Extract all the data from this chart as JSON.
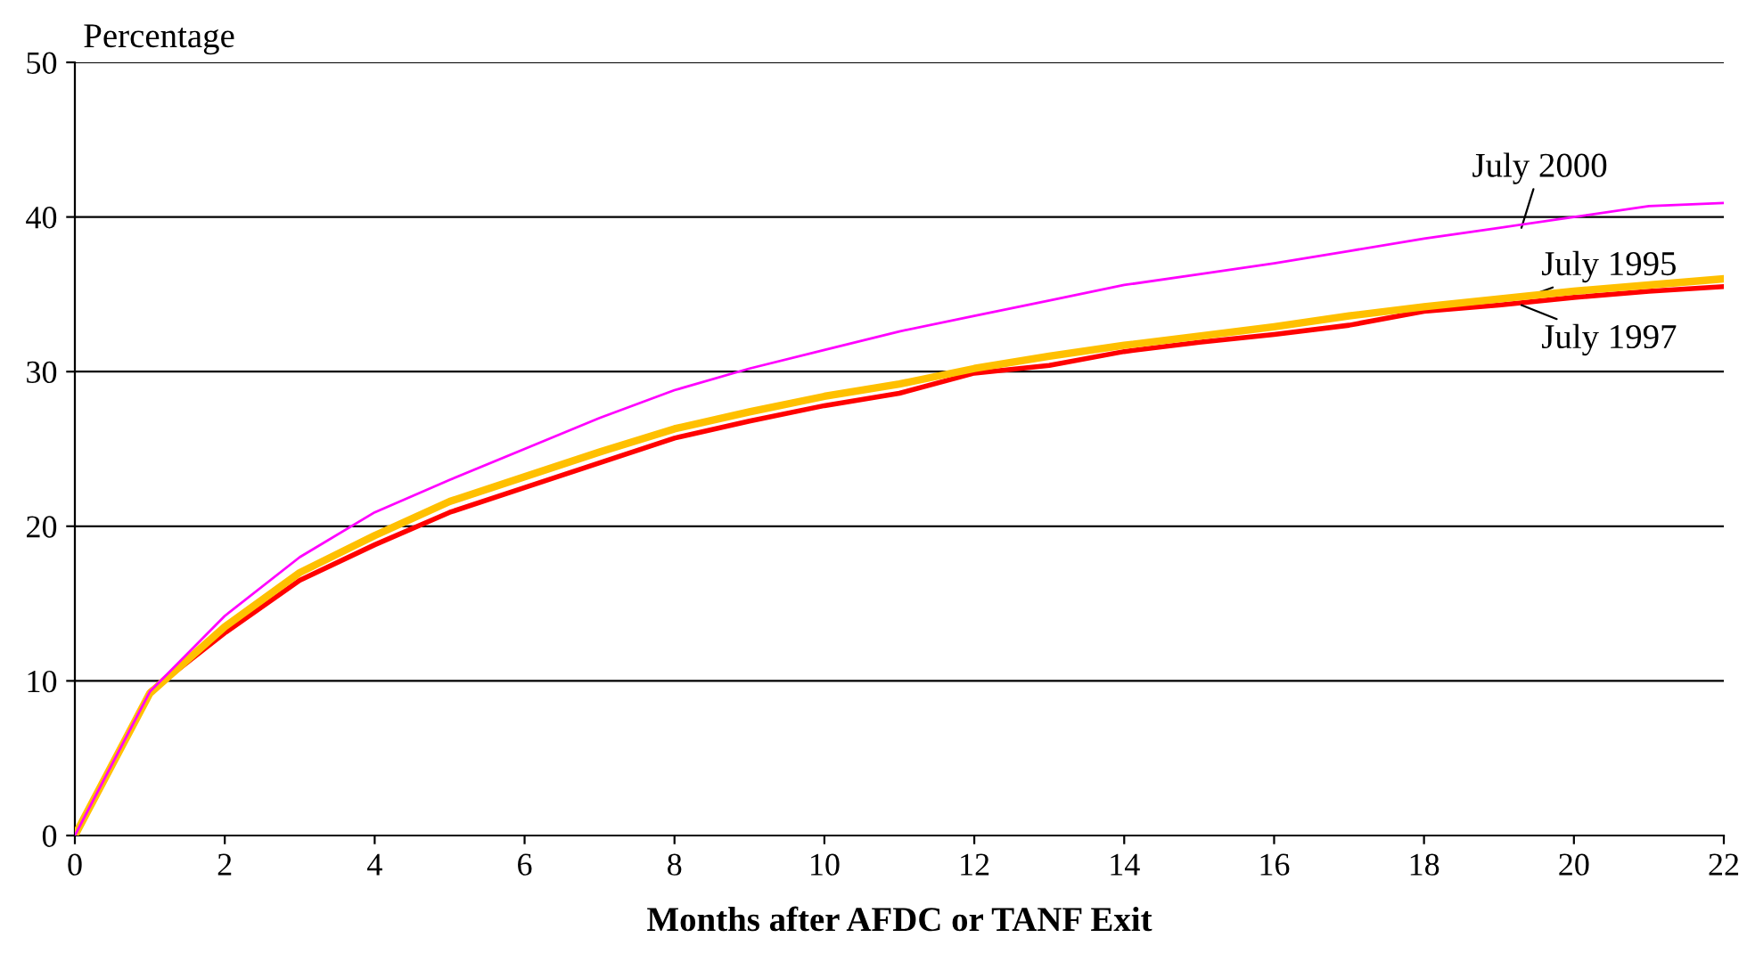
{
  "chart_data": {
    "type": "line",
    "xlabel": "Months after AFDC or TANF Exit",
    "ylabel": "Percentage",
    "x": [
      0,
      1,
      2,
      3,
      4,
      5,
      6,
      7,
      8,
      9,
      10,
      11,
      12,
      13,
      14,
      15,
      16,
      17,
      18,
      19,
      20,
      21,
      22
    ],
    "series": [
      {
        "name": "July 2000",
        "color": "#ff00ff",
        "values": [
          0,
          9.3,
          14.2,
          18,
          20.9,
          23,
          25,
          27,
          28.8,
          30.2,
          31.4,
          32.6,
          33.6,
          34.6,
          35.6,
          36.3,
          37,
          37.8,
          38.6,
          39.3,
          40,
          40.7,
          40.9
        ]
      },
      {
        "name": "July 1995",
        "color": "#ffc000",
        "values": [
          0,
          9.2,
          13.5,
          17,
          19.4,
          21.6,
          23.2,
          24.8,
          26.3,
          27.4,
          28.4,
          29.2,
          30.2,
          31,
          31.7,
          32.3,
          32.9,
          33.6,
          34.2,
          34.7,
          35.2,
          35.6,
          36
        ]
      },
      {
        "name": "July 1997",
        "color": "#ff0000",
        "values": [
          0,
          9.3,
          13.1,
          16.5,
          18.8,
          20.9,
          22.5,
          24.1,
          25.7,
          26.8,
          27.8,
          28.6,
          29.9,
          30.4,
          31.3,
          31.9,
          32.4,
          33,
          33.9,
          34.3,
          34.8,
          35.2,
          35.5
        ]
      }
    ],
    "xlim": [
      0,
      22
    ],
    "xticks": [
      0,
      2,
      4,
      6,
      8,
      10,
      12,
      14,
      16,
      18,
      20,
      22
    ],
    "ylim": [
      0,
      50
    ],
    "yticks": [
      0,
      10,
      20,
      30,
      40,
      50
    ],
    "grid": "y",
    "legend": false,
    "marker": "none",
    "line_style": "solid"
  }
}
